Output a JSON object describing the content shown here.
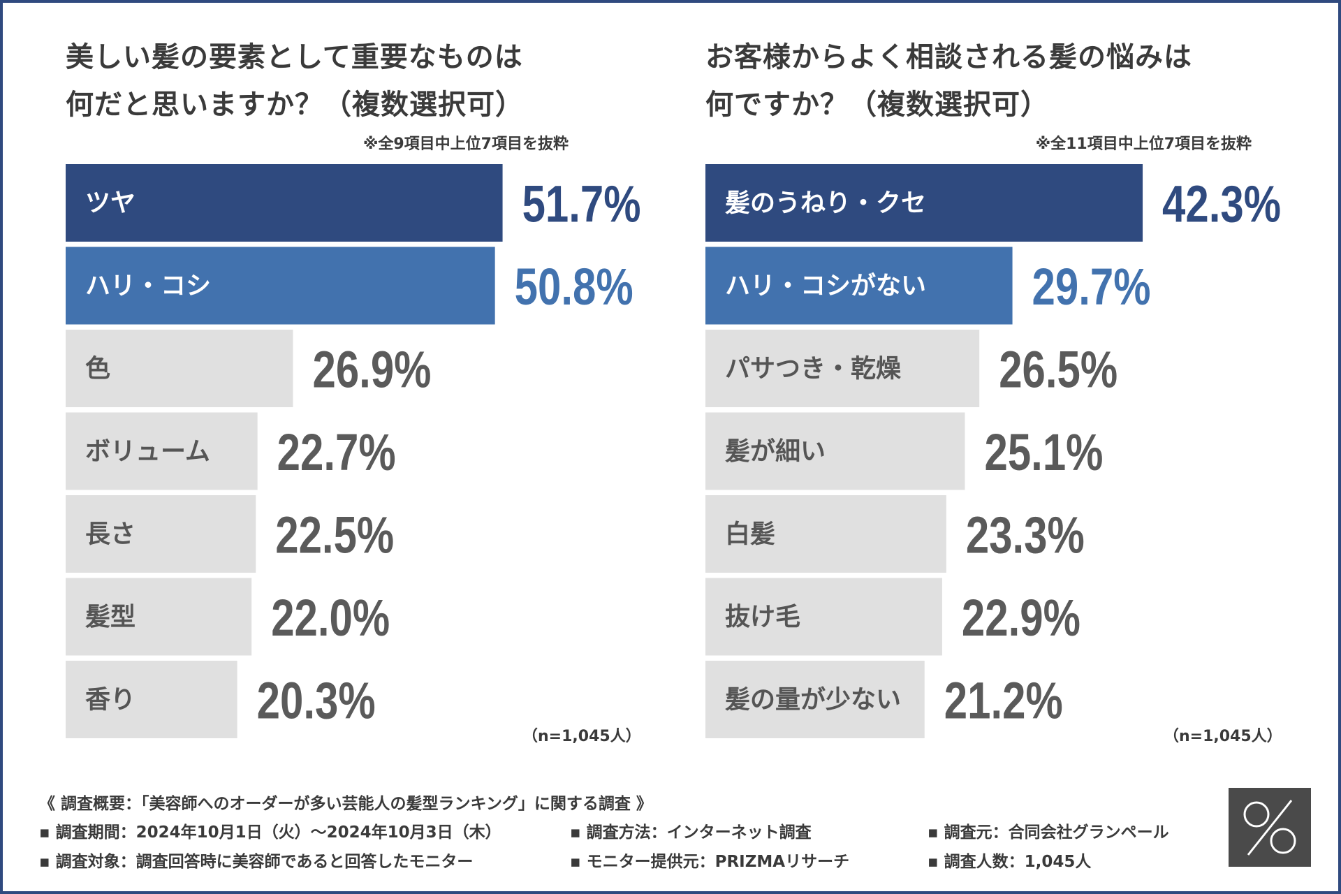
{
  "left_panel": {
    "title_line1": "美しい髪の要素として重要なものは",
    "title_line2": "何だと思いますか？（複数選択可）",
    "note": "※全9項目中上位7項目を抜粋",
    "n_label": "（n=1,045人）"
  },
  "right_panel": {
    "title_line1": "お客様からよく相談される髪の悩みは",
    "title_line2": "何ですか？（複数選択可）",
    "note": "※全11項目中上位7項目を抜粋",
    "n_label": "（n=1,045人）"
  },
  "chart_data": [
    {
      "type": "bar",
      "orientation": "horizontal",
      "title": "美しい髪の要素として重要なものは何だと思いますか？（複数選択可）",
      "categories": [
        "ツヤ",
        "ハリ・コシ",
        "色",
        "ボリューム",
        "長さ",
        "髪型",
        "香り"
      ],
      "values": [
        51.7,
        50.8,
        26.9,
        22.7,
        22.5,
        22.0,
        20.3
      ],
      "labels": [
        "51.7%",
        "50.8%",
        "26.9%",
        "22.7%",
        "22.5%",
        "22.0%",
        "20.3%"
      ],
      "unit": "%"
    },
    {
      "type": "bar",
      "orientation": "horizontal",
      "title": "お客様からよく相談される髪の悩みは何ですか？（複数選択可）",
      "categories": [
        "髪のうねり・クセ",
        "ハリ・コシがない",
        "パサつき・乾燥",
        "髪が細い",
        "白髪",
        "抜け毛",
        "髪の量が少ない"
      ],
      "values": [
        42.3,
        29.7,
        26.5,
        25.1,
        23.3,
        22.9,
        21.2
      ],
      "labels": [
        "42.3%",
        "29.7%",
        "26.5%",
        "25.1%",
        "23.3%",
        "22.9%",
        "21.2%"
      ],
      "unit": "%"
    }
  ],
  "colors": {
    "rank1": "#2f4a7f",
    "rank2": "#4272ae",
    "other": "#e0e0e0",
    "label_light": "#ffffff",
    "label_dark": "#555555",
    "value_rank1": "#2f4a7f",
    "value_rank2": "#4272ae",
    "value_other": "#5a5a5a"
  },
  "footer": {
    "heading": "《 調査概要：「美容師へのオーダーが多い芸能人の髪型ランキング」に関する調査 》",
    "items": [
      "▪ 調査期間：2024年10月1日（火）〜2024年10月3日（木）",
      "▪ 調査方法：インターネット調査",
      "▪ 調査元：合同会社グランペール",
      "▪ 調査対象：調査回答時に美容師であると回答したモニター",
      "▪ モニター提供元：PRIZMAリサーチ",
      "▪ 調査人数：1,045人"
    ]
  },
  "logo": {
    "icon": "percent-logo-icon"
  }
}
